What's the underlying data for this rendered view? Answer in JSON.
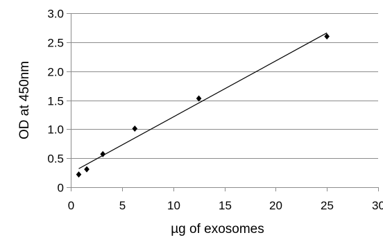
{
  "chart_data": {
    "type": "scatter",
    "title": "",
    "xlabel": "µg of exosomes",
    "ylabel": "OD at 450nm",
    "xlim": [
      0,
      30
    ],
    "ylim": [
      0,
      3.0
    ],
    "x_ticks": [
      0,
      5,
      10,
      15,
      20,
      25,
      30
    ],
    "x_tick_labels": [
      "0",
      "5",
      "10",
      "15",
      "20",
      "25",
      "30"
    ],
    "y_ticks": [
      0,
      0.5,
      1.0,
      1.5,
      2.0,
      2.5,
      3.0
    ],
    "y_tick_labels": [
      "0",
      "0.5",
      "1.0",
      "1.5",
      "2.0",
      "2.5",
      "3.0"
    ],
    "grid": "horizontal",
    "legend": "none",
    "series": [
      {
        "x": [
          0.78,
          1.56,
          3.13,
          6.25,
          12.5,
          25.0
        ],
        "y": [
          0.22,
          0.31,
          0.57,
          1.01,
          1.53,
          2.6
        ]
      }
    ],
    "trendline": {
      "type": "linear",
      "x": [
        0.78,
        25.0
      ],
      "y": [
        0.32,
        2.66
      ]
    },
    "colors": {
      "points": "#000000",
      "trendline": "#000000",
      "grid": "#8c8c8c"
    }
  }
}
